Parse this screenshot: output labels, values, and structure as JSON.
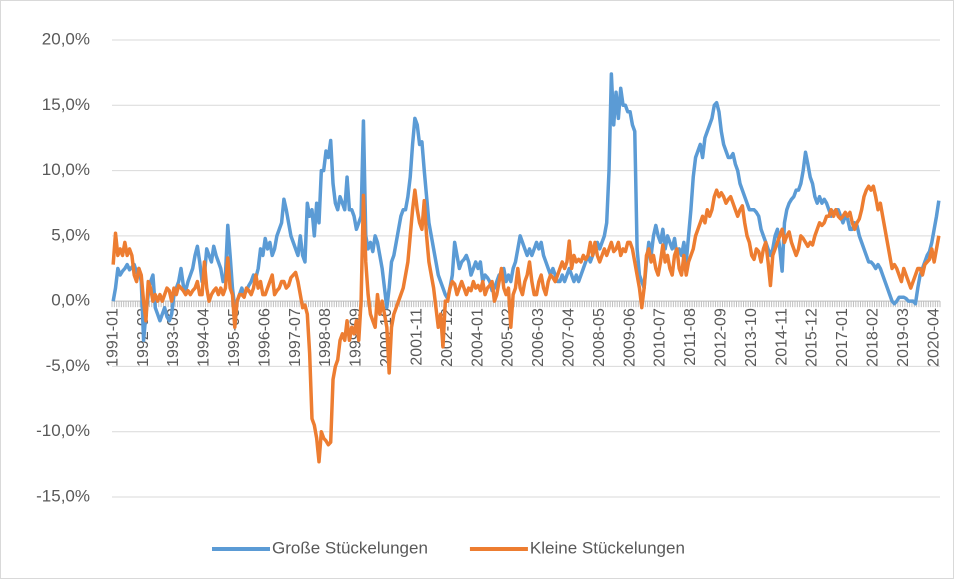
{
  "chart_data": {
    "type": "line",
    "categories": [
      "1991-01",
      null,
      null,
      null,
      null,
      null,
      null,
      null,
      null,
      null,
      null,
      null,
      null,
      "1992-02",
      null,
      null,
      null,
      null,
      null,
      null,
      null,
      null,
      null,
      null,
      null,
      null,
      "1993-03",
      null,
      null,
      null,
      null,
      null,
      null,
      null,
      null,
      null,
      null,
      null,
      null,
      "1994-04",
      null,
      null,
      null,
      null,
      null,
      null,
      null,
      null,
      null,
      null,
      null,
      null,
      "1995-05",
      null,
      null,
      null,
      null,
      null,
      null,
      null,
      null,
      null,
      null,
      null,
      null,
      "1996-06",
      null,
      null,
      null,
      null,
      null,
      null,
      null,
      null,
      null,
      null,
      null,
      null,
      "1997-07",
      null,
      null,
      null,
      null,
      null,
      null,
      null,
      null,
      null,
      null,
      null,
      null,
      "1998-08",
      null,
      null,
      null,
      null,
      null,
      null,
      null,
      null,
      null,
      null,
      null,
      null,
      "1999-09",
      null,
      null,
      null,
      null,
      null,
      null,
      null,
      null,
      null,
      null,
      null,
      null,
      "2000-10",
      null,
      null,
      null,
      null,
      null,
      null,
      null,
      null,
      null,
      null,
      null,
      null,
      "2001-11",
      null,
      null,
      null,
      null,
      null,
      null,
      null,
      null,
      null,
      null,
      null,
      null,
      "2002-12",
      null,
      null,
      null,
      null,
      null,
      null,
      null,
      null,
      null,
      null,
      null,
      null,
      "2004-01",
      null,
      null,
      null,
      null,
      null,
      null,
      null,
      null,
      null,
      null,
      null,
      null,
      "2005-02",
      null,
      null,
      null,
      null,
      null,
      null,
      null,
      null,
      null,
      null,
      null,
      null,
      "2006-03",
      null,
      null,
      null,
      null,
      null,
      null,
      null,
      null,
      null,
      null,
      null,
      null,
      "2007-04",
      null,
      null,
      null,
      null,
      null,
      null,
      null,
      null,
      null,
      null,
      null,
      null,
      "2008-05",
      null,
      null,
      null,
      null,
      null,
      null,
      null,
      null,
      null,
      null,
      null,
      null,
      "2009-06",
      null,
      null,
      null,
      null,
      null,
      null,
      null,
      null,
      null,
      null,
      null,
      null,
      "2010-07",
      null,
      null,
      null,
      null,
      null,
      null,
      null,
      null,
      null,
      null,
      null,
      null,
      "2011-08",
      null,
      null,
      null,
      null,
      null,
      null,
      null,
      null,
      null,
      null,
      null,
      null,
      "2012-09",
      null,
      null,
      null,
      null,
      null,
      null,
      null,
      null,
      null,
      null,
      null,
      null,
      "2013-10",
      null,
      null,
      null,
      null,
      null,
      null,
      null,
      null,
      null,
      null,
      null,
      null,
      "2014-11",
      null,
      null,
      null,
      null,
      null,
      null,
      null,
      null,
      null,
      null,
      null,
      null,
      "2015-12",
      null,
      null,
      null,
      null,
      null,
      null,
      null,
      null,
      null,
      null,
      null,
      null,
      "2017-01",
      null,
      null,
      null,
      null,
      null,
      null,
      null,
      null,
      null,
      null,
      null,
      null,
      "2018-02",
      null,
      null,
      null,
      null,
      null,
      null,
      null,
      null,
      null,
      null,
      null,
      null,
      "2019-03",
      null,
      null,
      null,
      null,
      null,
      null,
      null,
      null,
      null,
      null,
      null,
      null,
      "2020-04",
      null,
      null
    ],
    "series": [
      {
        "name": "Große Stückelungen",
        "color": "#5b9bd5",
        "values": [
          0,
          1,
          2.5,
          2,
          2.3,
          2.5,
          2.8,
          2.4,
          2.6,
          2.8,
          2.2,
          2.5,
          1.5,
          -3,
          -1,
          0.5,
          1.5,
          2,
          -0.5,
          -1,
          -1.5,
          -1,
          -0.5,
          -1.2,
          -1.5,
          -1,
          0.5,
          1,
          1.5,
          2.5,
          1.2,
          0.8,
          1.5,
          2,
          2.5,
          3.5,
          4.2,
          3,
          1.5,
          2,
          4,
          3.5,
          3,
          4.2,
          3.5,
          3,
          2.5,
          1.5,
          2,
          5.8,
          3.5,
          1,
          -0.5,
          0,
          0.5,
          1,
          0.5,
          0.8,
          1.2,
          1.5,
          2,
          1.8,
          2.5,
          4,
          3.5,
          4.8,
          4,
          4.5,
          3.5,
          4,
          5,
          5.5,
          6,
          7.8,
          7,
          6,
          5,
          4.5,
          4,
          3.5,
          5,
          3.5,
          3,
          7.5,
          6.5,
          7,
          5,
          7.5,
          6,
          10,
          10,
          11.5,
          11,
          12.3,
          9,
          7.5,
          7,
          8,
          7.5,
          7,
          9.5,
          7,
          7,
          6.5,
          5.5,
          6,
          6.5,
          13.8,
          5,
          4,
          4.5,
          3.8,
          5,
          4.5,
          3.5,
          2.5,
          1,
          -0.5,
          1,
          3,
          3.5,
          4.5,
          5.5,
          6.5,
          7,
          7,
          8,
          9.5,
          12,
          14,
          13.5,
          12,
          12.2,
          10,
          8,
          6,
          5,
          4,
          3,
          2,
          1.5,
          1,
          0.5,
          0.2,
          1,
          2,
          4.5,
          3.5,
          2.5,
          3,
          3.2,
          3.5,
          3,
          2,
          2.5,
          3,
          2.5,
          3,
          1.5,
          2,
          1.8,
          1.5,
          0.8,
          1,
          1.5,
          2,
          1.8,
          2.5,
          1.5,
          2,
          1.5,
          2.5,
          3,
          4,
          5,
          4.5,
          4,
          3.5,
          4,
          3.5,
          4,
          4.5,
          4,
          4.5,
          3.5,
          3,
          2.5,
          2,
          2.5,
          2,
          1.5,
          1.5,
          2,
          1.5,
          2,
          2.5,
          2,
          1.5,
          2,
          1.5,
          2,
          2.5,
          3,
          3.5,
          3,
          3.5,
          4,
          4.5,
          4,
          4.5,
          5,
          6,
          10,
          17.4,
          13.5,
          16,
          14,
          16.3,
          15,
          15,
          14.5,
          14.5,
          13.5,
          13,
          4,
          2,
          1.5,
          1,
          3,
          4.5,
          3.5,
          5,
          5.8,
          5,
          4.5,
          5.5,
          4,
          5,
          4.5,
          4,
          4.8,
          3.5,
          4,
          3.5,
          4.5,
          3,
          5,
          7,
          9.5,
          11,
          11.5,
          12,
          11,
          12.5,
          13,
          13.5,
          14,
          15,
          15.2,
          14.5,
          13,
          12,
          11.5,
          11,
          11,
          11.3,
          10.5,
          10,
          9,
          8.5,
          8,
          7.5,
          7,
          7,
          7,
          6.8,
          6.5,
          5.5,
          5,
          4.5,
          4,
          3.5,
          4,
          5,
          5.5,
          4,
          2.3,
          6,
          7,
          7.5,
          7.8,
          8,
          8.5,
          8.5,
          9,
          10,
          11.4,
          10.5,
          9.5,
          9,
          8,
          7.5,
          8,
          7.5,
          7.8,
          7.5,
          7,
          6.5,
          6.8,
          7,
          7,
          6.5,
          6,
          6.5,
          6.3,
          5.5,
          5.5,
          6,
          5.8,
          5,
          4.5,
          4,
          3.5,
          3,
          3,
          2.8,
          2.5,
          2.8,
          2.5,
          2,
          1.5,
          1,
          0.5,
          0,
          -0.2,
          0,
          0.3,
          0.3,
          0.3,
          0.2,
          0,
          0,
          0,
          -0.2,
          1,
          2,
          2.5,
          3,
          3.5,
          3.8,
          4.5,
          5.5,
          6.5,
          7.7
        ]
      },
      {
        "name": "Kleine Stückelungen",
        "color": "#ed7d31",
        "values": [
          2.8,
          5.2,
          3.5,
          4,
          3.5,
          4.5,
          3.5,
          4,
          3.5,
          2,
          1.5,
          2.5,
          2,
          0,
          -1.5,
          1.5,
          1,
          0,
          0.5,
          0,
          0.5,
          0,
          0.5,
          1,
          0.8,
          0,
          1,
          0.5,
          1.2,
          1,
          0.8,
          0.5,
          0.8,
          0.5,
          0.8,
          1,
          1.5,
          0.5,
          0.5,
          3,
          1,
          0,
          0.5,
          0.8,
          1,
          0.5,
          1,
          0.5,
          1,
          3.3,
          1,
          0.5,
          -2,
          0,
          0.5,
          0.5,
          0.3,
          1,
          0.8,
          0.5,
          1,
          2,
          1,
          1.5,
          0.5,
          0.5,
          1,
          1.5,
          2,
          0.5,
          0.8,
          1,
          1.5,
          1.5,
          1,
          1.2,
          1.8,
          2,
          2.2,
          1.5,
          0.5,
          -0.5,
          -0.3,
          -1,
          -4,
          -9,
          -9.5,
          -10.5,
          -12.3,
          -10,
          -10.5,
          -10.7,
          -11,
          -10.8,
          -6,
          -5,
          -4.5,
          -3,
          -2.5,
          -3,
          -1.5,
          -3,
          -2,
          -2.5,
          -1.5,
          -3,
          0,
          8.1,
          3,
          0.5,
          -1,
          -1.5,
          -2,
          0.5,
          -1,
          0,
          -1,
          -2,
          -5.5,
          -2,
          -1,
          -0.5,
          0,
          0.5,
          1,
          2,
          3,
          5,
          7,
          8.5,
          7,
          6,
          5.5,
          7.7,
          5,
          3,
          2,
          1,
          -0.5,
          -2,
          -1,
          -3.5,
          0,
          0,
          1,
          1.5,
          1.3,
          0.5,
          1,
          1.5,
          1,
          0.5,
          1,
          0.8,
          1.5,
          1,
          1.2,
          0.8,
          1.5,
          0.5,
          1,
          1.2,
          1.5,
          0,
          0.5,
          1.5,
          2.5,
          1,
          0.5,
          1,
          -2,
          0.5,
          1,
          2.5,
          1,
          0.5,
          1.5,
          2,
          3,
          1.5,
          0.5,
          0.5,
          1.5,
          2,
          1,
          0.5,
          1.5,
          2,
          1.8,
          1.5,
          2,
          2.5,
          3,
          2.5,
          3,
          4.6,
          2.5,
          3.5,
          3,
          3.2,
          3,
          3.5,
          3.2,
          3.5,
          4.5,
          3.5,
          4.5,
          3.5,
          3,
          3.5,
          4,
          3.5,
          4,
          4.5,
          3.8,
          4,
          4.5,
          3.5,
          4,
          3.8,
          4.5,
          4.5,
          4,
          3,
          2,
          1,
          -0.5,
          1,
          3.5,
          4,
          3,
          3.5,
          2.5,
          2,
          3,
          4.3,
          3,
          3.5,
          2.5,
          2,
          3.5,
          4,
          2.5,
          2,
          3.5,
          2,
          3,
          3.5,
          4,
          5,
          5.5,
          6,
          6.5,
          6,
          7,
          6.5,
          7,
          8,
          8.5,
          8,
          8.3,
          8,
          7.5,
          7.8,
          8,
          7.5,
          7,
          6.5,
          7,
          7.3,
          6,
          5,
          4.5,
          3.5,
          3.2,
          4,
          3.8,
          3,
          4,
          4.5,
          3,
          1.2,
          3.5,
          4,
          4.5,
          5,
          5.5,
          4.5,
          5,
          5.3,
          4.5,
          4,
          3.5,
          4,
          5,
          4.8,
          4.5,
          4.2,
          4.5,
          4.3,
          5,
          5.5,
          6,
          5.8,
          6,
          6.5,
          6.5,
          7,
          6.5,
          7,
          6.5,
          6.3,
          6.5,
          6.8,
          6.5,
          6.8,
          6,
          5.5,
          6,
          6.3,
          7,
          8,
          8.5,
          8.8,
          8.5,
          8.8,
          8,
          7,
          7.5,
          6.5,
          5.5,
          4.5,
          3.5,
          2.5,
          2.8,
          2.5,
          2,
          1.5,
          2.5,
          2,
          1.5,
          1,
          1.5,
          2,
          2.5,
          2.5,
          2,
          2.8,
          3,
          3.2,
          4,
          3,
          4,
          5
        ]
      }
    ],
    "ylim": [
      -15,
      20
    ],
    "yticks": [
      {
        "value": -15,
        "label": "-15,0%"
      },
      {
        "value": -10,
        "label": "-10,0%"
      },
      {
        "value": -5,
        "label": "-5,0%"
      },
      {
        "value": 0,
        "label": "0,0%"
      },
      {
        "value": 5,
        "label": "5,0%"
      },
      {
        "value": 10,
        "label": "10,0%"
      },
      {
        "value": 15,
        "label": "15,0%"
      },
      {
        "value": 20,
        "label": "20,0%"
      }
    ],
    "grid": true,
    "legend": "bottom"
  }
}
